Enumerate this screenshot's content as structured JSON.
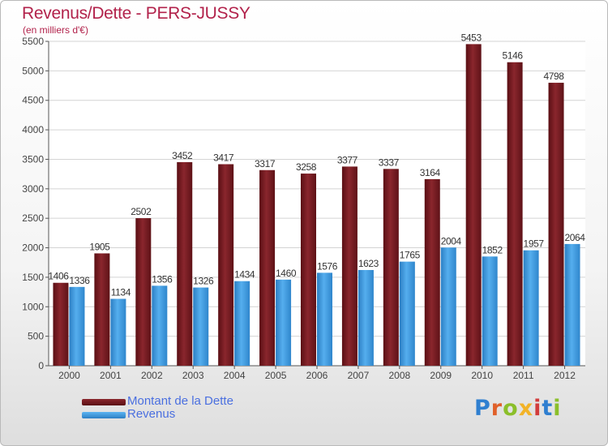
{
  "title": "Revenus/Dette - PERS-JUSSY",
  "subtitle": "(en milliers d'€)",
  "logo_text": "Proxiti",
  "colors": {
    "dette": "#7a1c22",
    "revenus": "#3a97dc",
    "title": "#b2224b",
    "legend_text": "#4a6fe0"
  },
  "chart_data": {
    "type": "bar",
    "categories": [
      "2000",
      "2001",
      "2002",
      "2003",
      "2004",
      "2005",
      "2006",
      "2007",
      "2008",
      "2009",
      "2010",
      "2011",
      "2012"
    ],
    "series": [
      {
        "name": "Montant de la Dette",
        "values": [
          1406,
          1905,
          2502,
          3452,
          3417,
          3317,
          3258,
          3377,
          3337,
          3164,
          5453,
          5146,
          4798
        ]
      },
      {
        "name": "Revenus",
        "values": [
          1336,
          1134,
          1356,
          1326,
          1434,
          1460,
          1576,
          1623,
          1765,
          2004,
          1852,
          1957,
          2064
        ]
      }
    ],
    "ylim": [
      0,
      5500
    ],
    "yticks": [
      0,
      500,
      1000,
      1500,
      2000,
      2500,
      3000,
      3500,
      4000,
      4500,
      5000,
      5500
    ],
    "grid": true,
    "legend_position": "bottom-left"
  }
}
